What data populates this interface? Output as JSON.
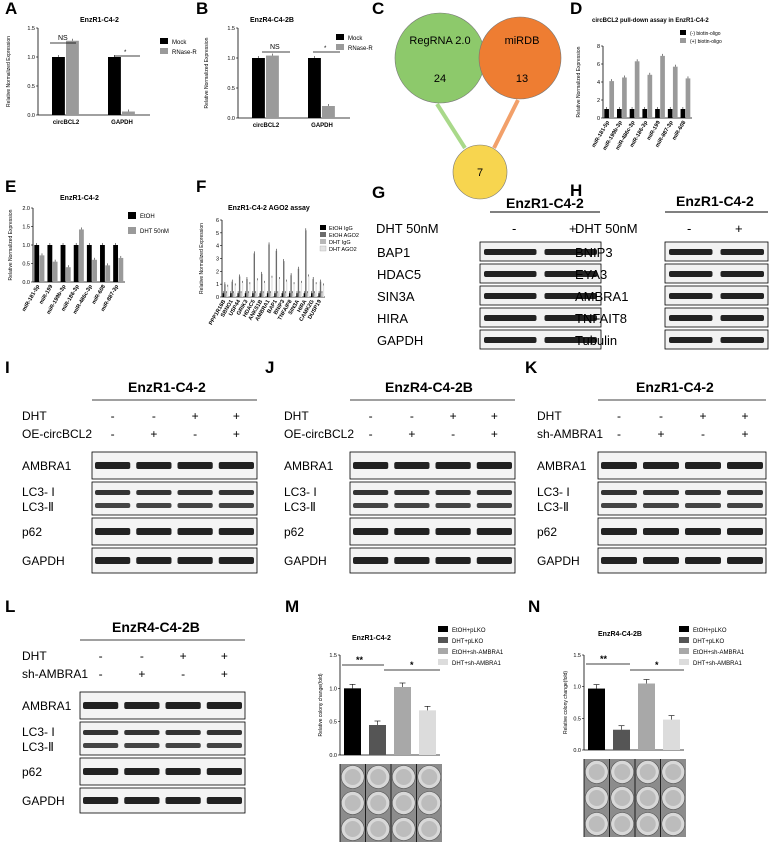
{
  "figure": {
    "panels": {
      "A": {
        "letter": "A",
        "title": "EnzR1-C4-2",
        "ylabel": "Relative Normalized Expression",
        "legend": [
          "Mock",
          "RNase-R"
        ],
        "sig": [
          "NS",
          "*"
        ]
      },
      "B": {
        "letter": "B",
        "title": "EnzR4-C4-2B",
        "ylabel": "Relative Normalized Expression",
        "legend": [
          "Mock",
          "RNase-R"
        ],
        "sig": [
          "NS",
          "*"
        ]
      },
      "C": {
        "letter": "C",
        "circles": [
          {
            "name": "RegRNA 2.0",
            "count": "24",
            "color": "#8dc96b"
          },
          {
            "name": "miRDB",
            "count": "13",
            "color": "#ee7d32"
          },
          {
            "name": "",
            "count": "7",
            "color": "#f7d54f"
          }
        ]
      },
      "D": {
        "letter": "D",
        "title": "circBCL2 pull-down assay in EnzR1-C4-2",
        "ylabel": "Relative Normalized Expression",
        "legend": [
          "(-) biotin-oligo",
          "(+) biotin-oligo"
        ]
      },
      "E": {
        "letter": "E",
        "title": "EnzR1-C4-2",
        "ylabel": "Relative Normalized Expression",
        "legend": [
          "EtOH",
          "DHT 50nM"
        ]
      },
      "F": {
        "letter": "F",
        "title": "EnzR1-C4-2  AGO2 assay",
        "ylabel": "Relative Normalized Expression",
        "legend": [
          "EtOH  IgG",
          "EtOH  AGO2",
          "DHT  IgG",
          "DHT  AGO2"
        ]
      },
      "G": {
        "letter": "G",
        "cell": "EnzR1-C4-2",
        "treat": "DHT 50nM",
        "signs": [
          "-",
          "+"
        ],
        "proteins": [
          "BAP1",
          "HDAC5",
          "SIN3A",
          "HIRA",
          "GAPDH"
        ]
      },
      "H": {
        "letter": "H",
        "cell": "EnzR1-C4-2",
        "treat": "DHT 50nM",
        "signs": [
          "-",
          "+"
        ],
        "proteins": [
          "BNIP3",
          "EYA3",
          "AMBRA1",
          "TNFAIT8",
          "Tubulin"
        ]
      },
      "I": {
        "letter": "I",
        "cell": "EnzR1-C4-2",
        "rows": [
          "DHT",
          "OE-circBCL2"
        ],
        "signs1": [
          "-",
          "-",
          "+",
          "+"
        ],
        "signs2": [
          "-",
          "+",
          "-",
          "+"
        ],
        "proteins": [
          "AMBRA1",
          "LC3- I",
          "LC3-Ⅱ",
          "p62",
          "GAPDH"
        ]
      },
      "J": {
        "letter": "J",
        "cell": "EnzR4-C4-2B",
        "rows": [
          "DHT",
          "OE-circBCL2"
        ],
        "signs1": [
          "-",
          "-",
          "+",
          "+"
        ],
        "signs2": [
          "-",
          "+",
          "-",
          "+"
        ],
        "proteins": [
          "AMBRA1",
          "LC3- I",
          "LC3-Ⅱ",
          "p62",
          "GAPDH"
        ]
      },
      "K": {
        "letter": "K",
        "cell": "EnzR1-C4-2",
        "rows": [
          "DHT",
          "sh-AMBRA1"
        ],
        "signs1": [
          "-",
          "-",
          "+",
          "+"
        ],
        "signs2": [
          "-",
          "+",
          "-",
          "+"
        ],
        "proteins": [
          "AMBRA1",
          "LC3- I",
          "LC3-Ⅱ",
          "p62",
          "GAPDH"
        ]
      },
      "L": {
        "letter": "L",
        "cell": "EnzR4-C4-2B",
        "rows": [
          "DHT",
          "sh-AMBRA1"
        ],
        "signs1": [
          "-",
          "-",
          "+",
          "+"
        ],
        "signs2": [
          "-",
          "+",
          "-",
          "+"
        ],
        "proteins": [
          "AMBRA1",
          "LC3- I",
          "LC3-Ⅱ",
          "p62",
          "GAPDH"
        ]
      },
      "M": {
        "letter": "M",
        "title": "EnzR1-C4-2",
        "ylabel": "Relative colony change(fold)",
        "legend": [
          "EtOH+pLKO",
          "DHT+pLKO",
          "EtOH+sh-AMBRA1",
          "DHT+sh-AMBRA1"
        ],
        "sig": [
          "**",
          "*"
        ]
      },
      "N": {
        "letter": "N",
        "title": "EnzR4-C4-2B",
        "ylabel": "Relative colony change(fold)",
        "legend": [
          "EtOH+pLKO",
          "DHT+pLKO",
          "EtOH+sh-AMBRA1",
          "DHT+sh-AMBRA1"
        ],
        "sig": [
          "**",
          "*"
        ]
      }
    }
  },
  "chart_data": [
    {
      "id": "A",
      "type": "bar",
      "categories": [
        "circBCL2",
        "GAPDH"
      ],
      "series": [
        {
          "name": "Mock",
          "values": [
            1.0,
            1.0
          ],
          "color": "#000000"
        },
        {
          "name": "RNase-R",
          "values": [
            1.28,
            0.06
          ],
          "color": "#9a9a9a"
        }
      ],
      "ylim": [
        0,
        1.5
      ],
      "yticks": [
        "0.0",
        "0.5",
        "1.0",
        "1.5"
      ]
    },
    {
      "id": "B",
      "type": "bar",
      "categories": [
        "circBCL2",
        "GAPDH"
      ],
      "series": [
        {
          "name": "Mock",
          "values": [
            1.0,
            1.0
          ],
          "color": "#000000"
        },
        {
          "name": "RNase-R",
          "values": [
            1.04,
            0.2
          ],
          "color": "#9a9a9a"
        }
      ],
      "ylim": [
        0,
        1.5
      ],
      "yticks": [
        "0.0",
        "0.5",
        "1.0",
        "1.5"
      ]
    },
    {
      "id": "D",
      "type": "bar",
      "categories": [
        "miR-181-5p",
        "miR-199b-3p",
        "miR-486c-3p",
        "miR-186-3p",
        "miR-199",
        "miR-887-3p",
        "miR-608"
      ],
      "series": [
        {
          "name": "(-) biotin-oligo",
          "values": [
            1,
            1,
            1,
            1,
            1,
            1,
            1
          ],
          "color": "#000000"
        },
        {
          "name": "(+) biotin-oligo",
          "values": [
            4.1,
            4.5,
            6.3,
            4.8,
            6.9,
            5.7,
            4.4
          ],
          "color": "#9a9a9a"
        }
      ],
      "ylim": [
        0,
        8
      ],
      "yticks": [
        "0",
        "2",
        "4",
        "6",
        "8"
      ]
    },
    {
      "id": "E",
      "type": "bar",
      "categories": [
        "miR-181-5p",
        "miR-199",
        "miR-199b-3p",
        "miR-186-3p",
        "miR-486c-3p",
        "miR-608",
        "miR-887-3p"
      ],
      "series": [
        {
          "name": "EtOH",
          "values": [
            1,
            1,
            1,
            1,
            1,
            1,
            1
          ],
          "color": "#000000"
        },
        {
          "name": "DHT 50nM",
          "values": [
            0.72,
            0.55,
            0.4,
            1.42,
            0.6,
            0.45,
            0.65
          ],
          "color": "#9a9a9a"
        }
      ],
      "ylim": [
        0,
        2
      ],
      "yticks": [
        "0.0",
        "0.5",
        "1.0",
        "1.5",
        "2.0"
      ]
    },
    {
      "id": "F",
      "type": "bar",
      "categories": [
        "PPP1R16B",
        "SBNO1",
        "USP44",
        "GRIK3",
        "HDAC5",
        "ANKS1B",
        "AMBRA1",
        "BAP1",
        "BNIP3",
        "TNFAIP8",
        "SIN3A",
        "HIRA",
        "CAMK2G",
        "DUSP19"
      ],
      "series": [
        {
          "name": "EtOH  IgG",
          "values": [
            0.3,
            0.3,
            0.3,
            0.3,
            0.3,
            0.3,
            0.3,
            0.3,
            0.3,
            0.3,
            0.3,
            0.3,
            0.3,
            0.3
          ],
          "color": "#000000"
        },
        {
          "name": "EtOH  AGO2",
          "values": [
            1.0,
            1.2,
            1.6,
            1.4,
            3.4,
            1.8,
            4.1,
            3.6,
            2.8,
            1.7,
            2.2,
            5.2,
            1.4,
            1.2
          ],
          "color": "#6b6b6b"
        },
        {
          "name": "DHT  IgG",
          "values": [
            0.3,
            0.3,
            0.3,
            0.3,
            0.3,
            0.3,
            0.3,
            0.3,
            0.3,
            0.3,
            0.3,
            0.3,
            0.3,
            0.3
          ],
          "color": "#b8b8b8"
        },
        {
          "name": "DHT  AGO2",
          "values": [
            0.8,
            0.9,
            1.1,
            1.0,
            1.3,
            1.1,
            1.5,
            1.4,
            1.2,
            1.0,
            1.1,
            1.6,
            1.0,
            0.9
          ],
          "color": "#e3e3e3"
        }
      ],
      "ylim": [
        0,
        6
      ],
      "yticks": [
        "0",
        "1",
        "2",
        "3",
        "4",
        "5",
        "6"
      ]
    },
    {
      "id": "M",
      "type": "bar",
      "categories": [
        "EtOH+pLKO",
        "DHT+pLKO",
        "EtOH+sh-AMBRA1",
        "DHT+sh-AMBRA1"
      ],
      "values": [
        1.0,
        0.45,
        1.02,
        0.67
      ],
      "colors": [
        "#000000",
        "#555555",
        "#a8a8a8",
        "#dcdcdc"
      ],
      "ylim": [
        0,
        1.5
      ],
      "yticks": [
        "0.0",
        "0.5",
        "1.0",
        "1.5"
      ]
    },
    {
      "id": "N",
      "type": "bar",
      "categories": [
        "EtOH+pLKO",
        "DHT+pLKO",
        "EtOH+sh-AMBRA1",
        "DHT+sh-AMBRA1"
      ],
      "values": [
        0.97,
        0.32,
        1.05,
        0.48
      ],
      "colors": [
        "#000000",
        "#555555",
        "#a8a8a8",
        "#dcdcdc"
      ],
      "ylim": [
        0,
        1.5
      ],
      "yticks": [
        "0.0",
        "0.5",
        "1.0",
        "1.5"
      ]
    }
  ]
}
